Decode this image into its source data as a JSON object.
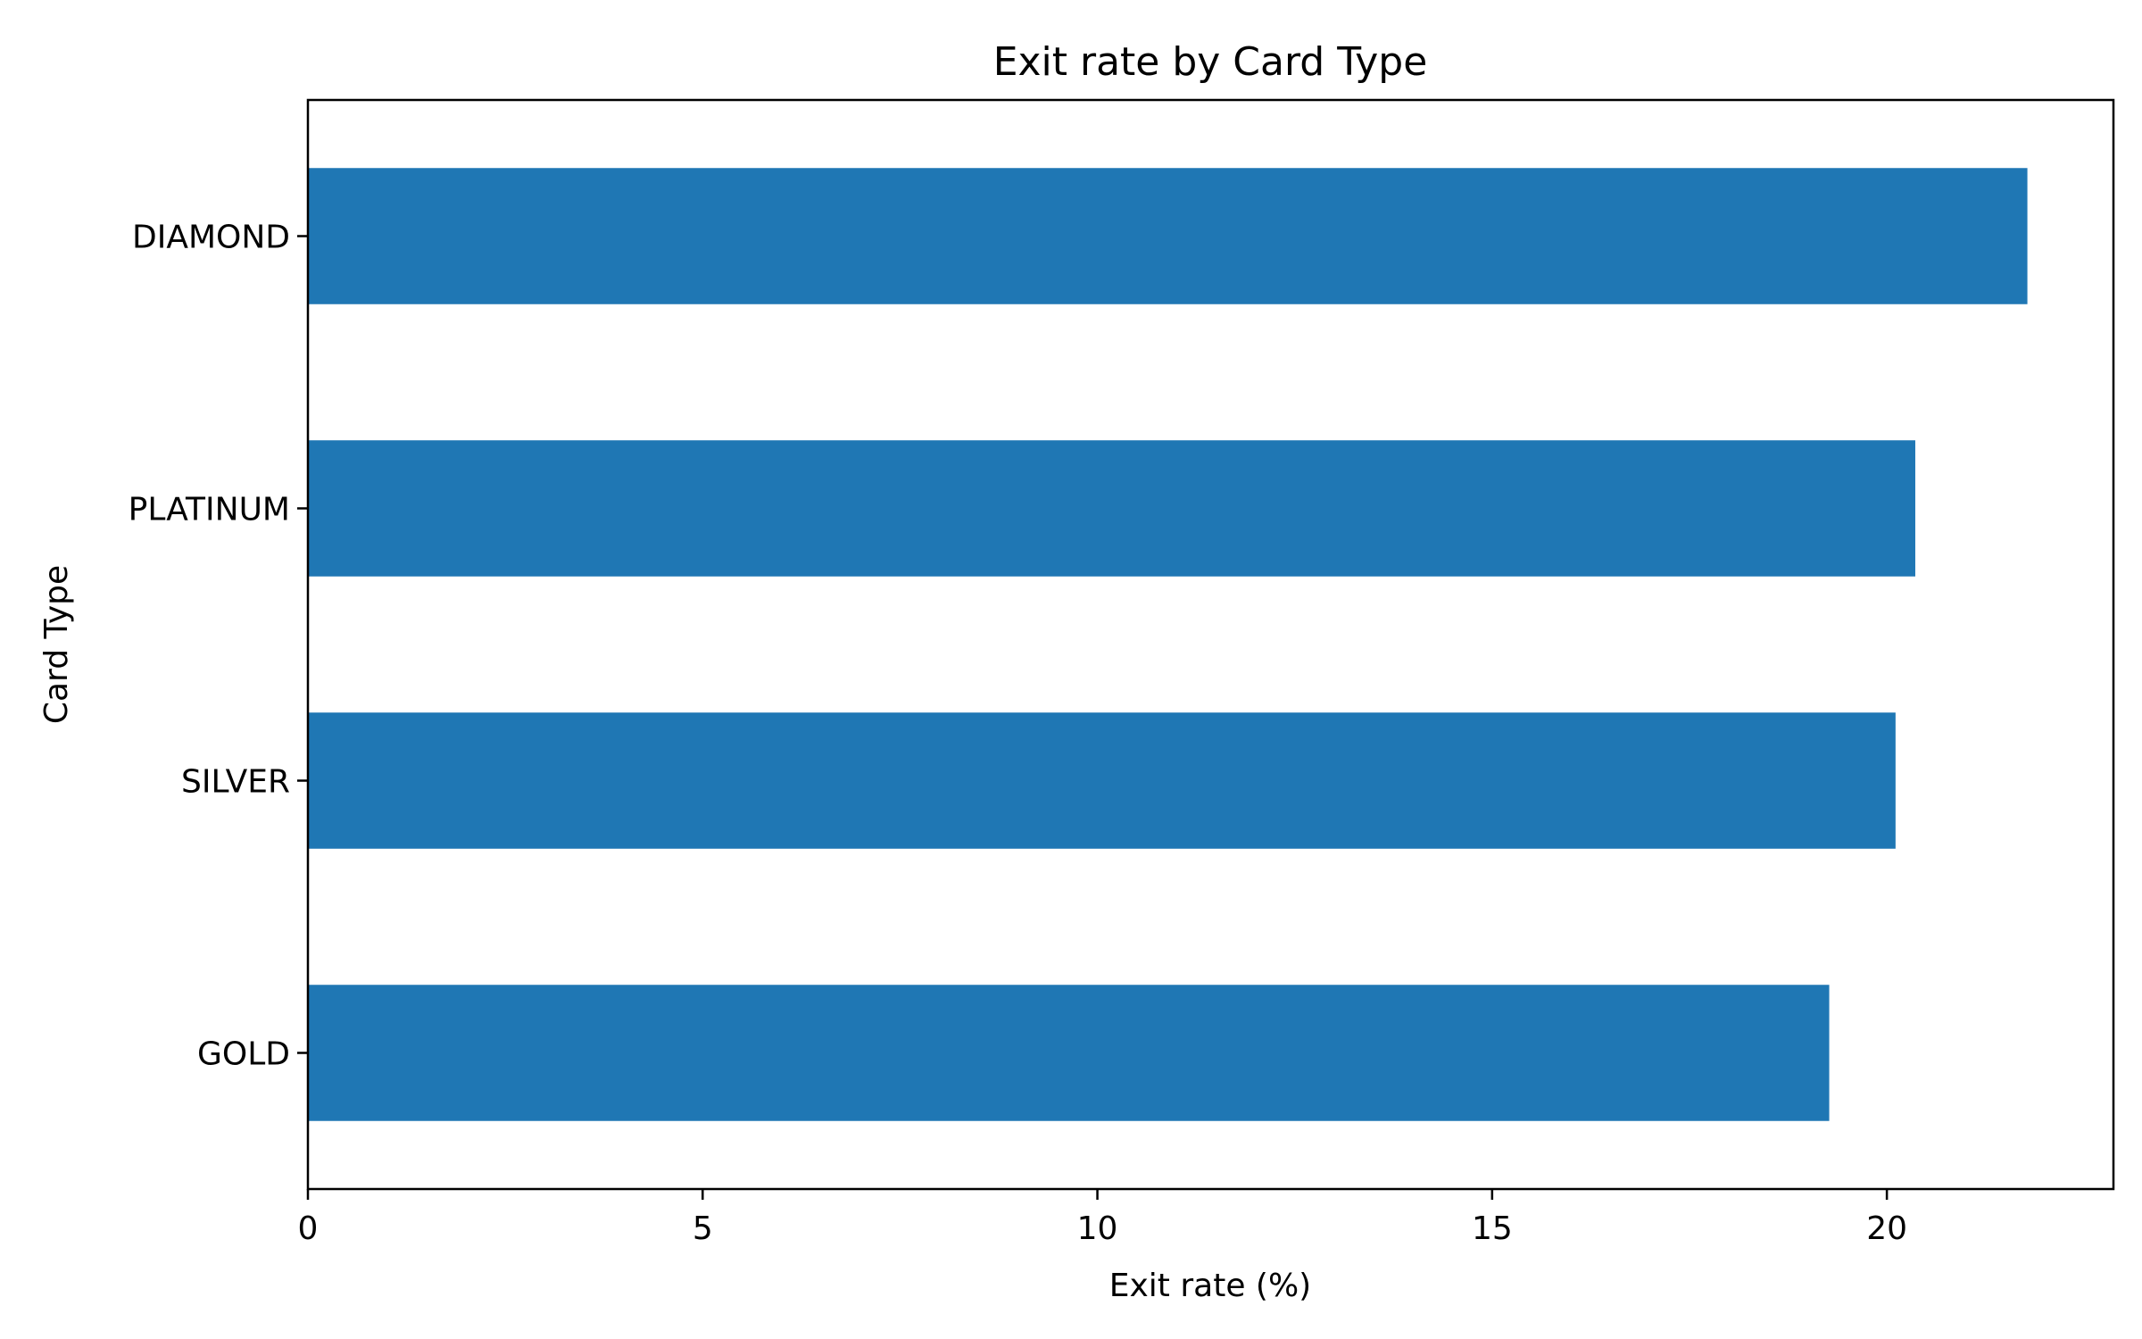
{
  "chart_data": {
    "type": "bar",
    "orientation": "horizontal",
    "title": "Exit rate by Card Type",
    "xlabel": "Exit rate (%)",
    "ylabel": "Card Type",
    "categories": [
      "GOLD",
      "SILVER",
      "PLATINUM",
      "DIAMOND"
    ],
    "values": [
      19.27,
      20.11,
      20.36,
      21.78
    ],
    "xlim": [
      0,
      22.87
    ],
    "xticks": [
      0,
      5,
      10,
      15,
      20
    ],
    "grid": false,
    "legend": "none",
    "bar_color": "#1f77b4"
  }
}
